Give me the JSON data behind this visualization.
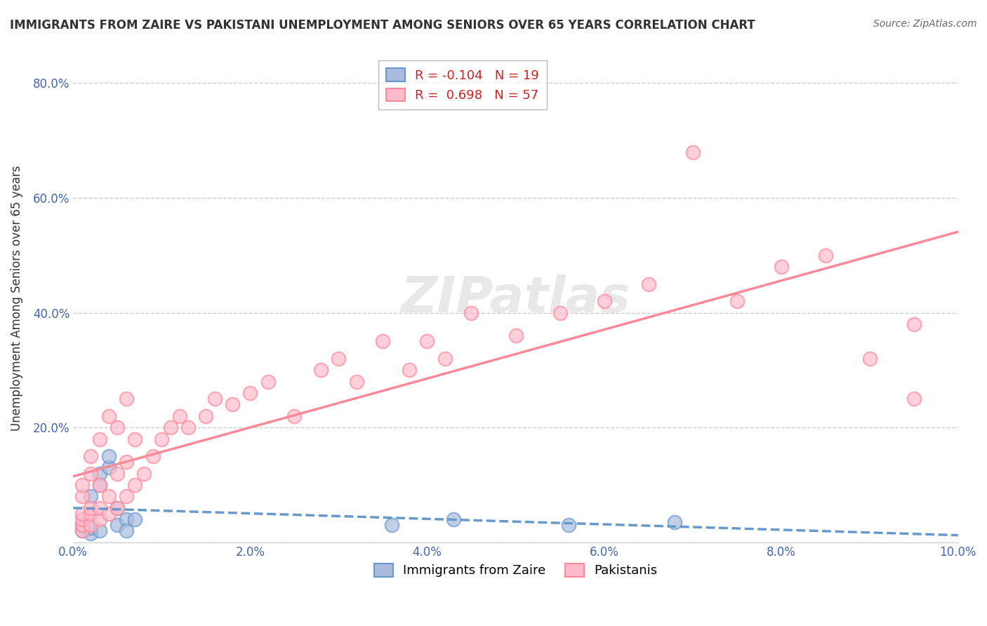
{
  "title": "IMMIGRANTS FROM ZAIRE VS PAKISTANI UNEMPLOYMENT AMONG SENIORS OVER 65 YEARS CORRELATION CHART",
  "source": "Source: ZipAtlas.com",
  "xlabel": "",
  "ylabel": "Unemployment Among Seniors over 65 years",
  "xlim": [
    0.0,
    0.1
  ],
  "ylim": [
    0.0,
    0.85
  ],
  "xtick_labels": [
    "0.0%",
    "2.0%",
    "4.0%",
    "6.0%",
    "8.0%",
    "10.0%"
  ],
  "xtick_vals": [
    0.0,
    0.02,
    0.04,
    0.06,
    0.08,
    0.1
  ],
  "ytick_labels": [
    "",
    "20.0%",
    "40.0%",
    "60.0%",
    "80.0%"
  ],
  "ytick_vals": [
    0.0,
    0.2,
    0.4,
    0.6,
    0.8
  ],
  "grid_color": "#cccccc",
  "background_color": "#ffffff",
  "blue_color": "#6699cc",
  "pink_color": "#ff8899",
  "blue_label": "Immigrants from Zaire",
  "pink_label": "Pakistanis",
  "R_blue": -0.104,
  "N_blue": 19,
  "R_pink": 0.698,
  "N_pink": 57,
  "watermark": "ZIPatlas",
  "blue_scatter_x": [
    0.001,
    0.001,
    0.002,
    0.002,
    0.002,
    0.003,
    0.003,
    0.003,
    0.004,
    0.004,
    0.005,
    0.005,
    0.006,
    0.006,
    0.007,
    0.036,
    0.043,
    0.056,
    0.068
  ],
  "blue_scatter_y": [
    0.02,
    0.03,
    0.015,
    0.025,
    0.08,
    0.02,
    0.12,
    0.1,
    0.13,
    0.15,
    0.06,
    0.03,
    0.04,
    0.02,
    0.04,
    0.03,
    0.04,
    0.03,
    0.035
  ],
  "pink_scatter_x": [
    0.001,
    0.001,
    0.001,
    0.001,
    0.001,
    0.001,
    0.002,
    0.002,
    0.002,
    0.002,
    0.002,
    0.003,
    0.003,
    0.003,
    0.003,
    0.004,
    0.004,
    0.004,
    0.005,
    0.005,
    0.005,
    0.006,
    0.006,
    0.006,
    0.007,
    0.007,
    0.008,
    0.009,
    0.01,
    0.011,
    0.012,
    0.013,
    0.015,
    0.016,
    0.018,
    0.02,
    0.022,
    0.025,
    0.028,
    0.03,
    0.032,
    0.035,
    0.038,
    0.04,
    0.042,
    0.045,
    0.05,
    0.055,
    0.06,
    0.065,
    0.07,
    0.075,
    0.08,
    0.085,
    0.09,
    0.095,
    0.095
  ],
  "pink_scatter_y": [
    0.02,
    0.03,
    0.04,
    0.05,
    0.08,
    0.1,
    0.03,
    0.05,
    0.06,
    0.12,
    0.15,
    0.04,
    0.06,
    0.1,
    0.18,
    0.05,
    0.08,
    0.22,
    0.06,
    0.12,
    0.2,
    0.08,
    0.14,
    0.25,
    0.1,
    0.18,
    0.12,
    0.15,
    0.18,
    0.2,
    0.22,
    0.2,
    0.22,
    0.25,
    0.24,
    0.26,
    0.28,
    0.22,
    0.3,
    0.32,
    0.28,
    0.35,
    0.3,
    0.35,
    0.32,
    0.4,
    0.36,
    0.4,
    0.42,
    0.45,
    0.68,
    0.42,
    0.48,
    0.5,
    0.32,
    0.38,
    0.25
  ]
}
